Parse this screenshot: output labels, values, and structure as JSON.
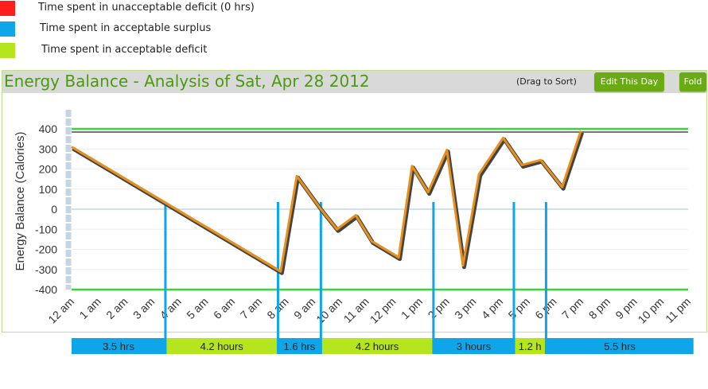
{
  "legend": [
    {
      "label": "Time spent in unacceptable deficit (0 hrs)",
      "color": "#ff1e1e"
    },
    {
      "label": "Time spent in acceptable surplus",
      "color": "#0ea5e9"
    },
    {
      "label": "Time spent in acceptable deficit",
      "color": "#b5e61d"
    }
  ],
  "panel": {
    "title": "Energy Balance - Analysis of Sat, Apr 28 2012",
    "drag_hint": "(Drag to Sort)",
    "edit_label": "Edit This Day",
    "fold_label": "Fold"
  },
  "chart_data": {
    "type": "line",
    "title": "",
    "xlabel": "",
    "ylabel": "Energy Balance (Calories)",
    "ylim": [
      -400,
      400
    ],
    "yticks": [
      400,
      300,
      200,
      100,
      0,
      -100,
      -200,
      -300,
      -400
    ],
    "xlim": [
      0,
      23
    ],
    "x_tick_labels": [
      "12 am",
      "1 am",
      "2 am",
      "3 am",
      "4 am",
      "5 am",
      "6 am",
      "7 am",
      "8 am",
      "9 am",
      "10 am",
      "11 am",
      "12 pm",
      "1 pm",
      "2 pm",
      "3 pm",
      "4 pm",
      "5 pm",
      "6 pm",
      "7 pm",
      "8 pm",
      "9 pm",
      "10 pm",
      "11 pm"
    ],
    "series": [
      {
        "values": [
          [
            0,
            310
          ],
          [
            7.8,
            -310
          ],
          [
            8.4,
            165
          ],
          [
            9.3,
            0
          ],
          [
            9.9,
            -100
          ],
          [
            10.6,
            -30
          ],
          [
            11.2,
            -160
          ],
          [
            12.2,
            -240
          ],
          [
            12.7,
            215
          ],
          [
            13.3,
            85
          ],
          [
            14.0,
            295
          ],
          [
            14.6,
            -280
          ],
          [
            15.2,
            175
          ],
          [
            16.1,
            355
          ],
          [
            16.8,
            220
          ],
          [
            17.5,
            245
          ],
          [
            18.3,
            110
          ],
          [
            19.0,
            390
          ]
        ],
        "color": "#e8901c"
      }
    ],
    "thresholds": [
      {
        "value": 400,
        "color": "#39d639"
      },
      {
        "value": -400,
        "color": "#39d639"
      }
    ],
    "segments": [
      {
        "label": "3.5 hrs",
        "kind": "surplus",
        "start": 0,
        "end": 3.5
      },
      {
        "label": "4.2 hours",
        "kind": "deficit",
        "start": 3.5,
        "end": 7.7
      },
      {
        "label": "1.6 hrs",
        "kind": "surplus",
        "start": 7.7,
        "end": 9.3
      },
      {
        "label": "4.2 hours",
        "kind": "deficit",
        "start": 9.3,
        "end": 13.5
      },
      {
        "label": "3 hours",
        "kind": "surplus",
        "start": 13.5,
        "end": 16.5
      },
      {
        "label": "1.2 h",
        "kind": "deficit",
        "start": 16.5,
        "end": 17.7
      },
      {
        "label": "5.5 hrs",
        "kind": "surplus",
        "start": 17.7,
        "end": 23.2
      }
    ],
    "colors": {
      "surplus": "#0ea5e9",
      "deficit": "#b5e61d",
      "line_shadow": "#444444"
    }
  }
}
